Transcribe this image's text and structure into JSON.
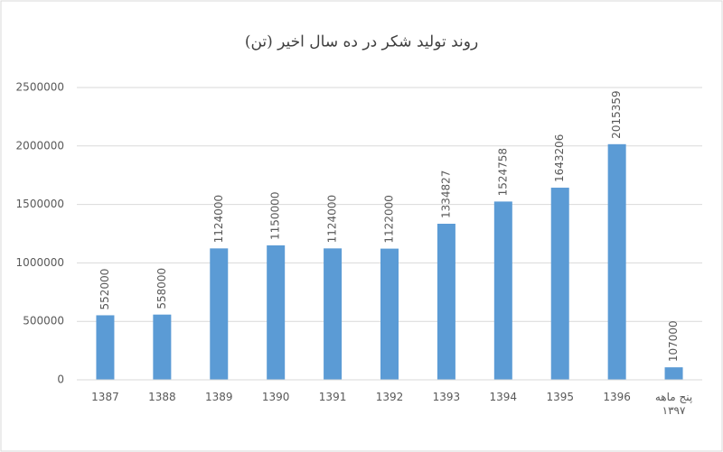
{
  "chart_data": {
    "type": "bar",
    "title": "روند تولید شکر در ده سال اخیر (تن)",
    "categories": [
      "1387",
      "1388",
      "1389",
      "1390",
      "1391",
      "1392",
      "1393",
      "1394",
      "1395",
      "1396",
      "پنج ماهه ۱۳۹۷"
    ],
    "values": [
      552000,
      558000,
      1124000,
      1150000,
      1124000,
      1122000,
      1334827,
      1524758,
      1643206,
      2015359,
      107000
    ],
    "color": "#5b9bd5",
    "ylim": [
      0,
      2500000
    ],
    "yticks": [
      0,
      500000,
      1000000,
      1500000,
      2000000,
      2500000
    ],
    "grid": true
  }
}
